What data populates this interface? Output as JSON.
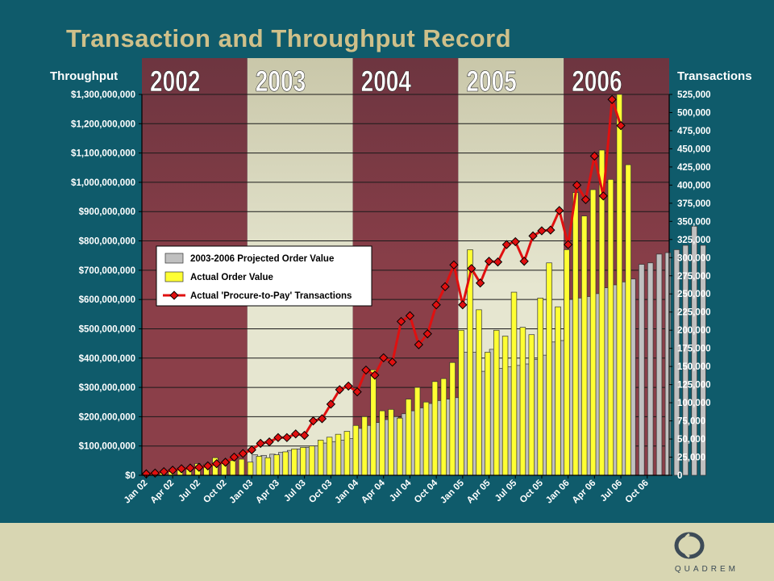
{
  "slide": {
    "title": "Transaction and Throughput Record",
    "left_axis_title": "Throughput",
    "right_axis_title": "Transactions"
  },
  "footer": {
    "brand_text": "QUADREM",
    "colors": {
      "background": "#d8d6b2",
      "logo": "#3d4b57"
    },
    "logo_icon": "quadrem-logo-icon"
  },
  "chart_data": {
    "type": "bar",
    "year_bands": [
      {
        "label": "2002",
        "start": 0,
        "end": 12,
        "color": "#8b3f49"
      },
      {
        "label": "2003",
        "start": 12,
        "end": 24,
        "color": "#e6e6d0"
      },
      {
        "label": "2004",
        "start": 24,
        "end": 36,
        "color": "#8b3f49"
      },
      {
        "label": "2005",
        "start": 36,
        "end": 48,
        "color": "#e6e6d0"
      },
      {
        "label": "2006",
        "start": 48,
        "end": 60,
        "color": "#8b3f49"
      }
    ],
    "x_tick_labels": [
      {
        "index": 0,
        "label": "Jan 02"
      },
      {
        "index": 3,
        "label": "Apr 02"
      },
      {
        "index": 6,
        "label": "Jul 02"
      },
      {
        "index": 9,
        "label": "Oct 02"
      },
      {
        "index": 12,
        "label": "Jan 03"
      },
      {
        "index": 15,
        "label": "Apr 03"
      },
      {
        "index": 18,
        "label": "Jul 03"
      },
      {
        "index": 21,
        "label": "Oct 03"
      },
      {
        "index": 24,
        "label": "Jan 04"
      },
      {
        "index": 27,
        "label": "Apr 04"
      },
      {
        "index": 30,
        "label": "Jul 04"
      },
      {
        "index": 33,
        "label": "Oct 04"
      },
      {
        "index": 36,
        "label": "Jan 05"
      },
      {
        "index": 39,
        "label": "Apr 05"
      },
      {
        "index": 42,
        "label": "Jul 05"
      },
      {
        "index": 45,
        "label": "Oct 05"
      },
      {
        "index": 48,
        "label": "Jan 06"
      },
      {
        "index": 51,
        "label": "Apr 06"
      },
      {
        "index": 54,
        "label": "Jul 06"
      },
      {
        "index": 57,
        "label": "Oct 06"
      }
    ],
    "y_left": {
      "min": 0,
      "max": 1300000000,
      "tick_values": [
        0,
        100000000,
        200000000,
        300000000,
        400000000,
        500000000,
        600000000,
        700000000,
        800000000,
        900000000,
        1000000000,
        1100000000,
        1200000000,
        1300000000
      ],
      "tick_labels": [
        "$0",
        "$100,000,000",
        "$200,000,000",
        "$300,000,000",
        "$400,000,000",
        "$500,000,000",
        "$600,000,000",
        "$700,000,000",
        "$800,000,000",
        "$900,000,000",
        "$1,000,000,000",
        "$1,100,000,000",
        "$1,200,000,000",
        "$1,300,000,000"
      ]
    },
    "y_right": {
      "min": 0,
      "max": 525000,
      "tick_values": [
        0,
        25000,
        50000,
        75000,
        100000,
        125000,
        150000,
        175000,
        200000,
        225000,
        250000,
        275000,
        300000,
        325000,
        350000,
        375000,
        400000,
        425000,
        450000,
        475000,
        500000,
        525000
      ],
      "tick_labels": [
        "0",
        "25,000",
        "50,000",
        "75,000",
        "100,000",
        "125,000",
        "150,000",
        "175,000",
        "200,000",
        "225,000",
        "250,000",
        "275,000",
        "300,000",
        "325,000",
        "350,000",
        "375,000",
        "400,000",
        "425,000",
        "450,000",
        "475,000",
        "500,000",
        "525,000"
      ]
    },
    "grid": true,
    "legend": {
      "placement": "upper-left",
      "entries": [
        {
          "label": "2003-2006 Projected Order Value",
          "color": "#c0c0c0",
          "kind": "bar"
        },
        {
          "label": "Actual Order Value",
          "color": "#ffff33",
          "kind": "bar"
        },
        {
          "label": "Actual 'Procure-to-Pay' Transactions",
          "color": "#e01010",
          "kind": "line"
        }
      ]
    },
    "series": [
      {
        "name": "2003-2006 Projected Order Value",
        "axis": "left",
        "start_index": 12,
        "values": [
          70000000,
          68000000,
          72000000,
          78000000,
          85000000,
          90000000,
          95000000,
          100000000,
          110000000,
          115000000,
          120000000,
          125000000,
          160000000,
          170000000,
          180000000,
          190000000,
          200000000,
          210000000,
          220000000,
          230000000,
          245000000,
          255000000,
          260000000,
          265000000,
          420000000,
          420000000,
          355000000,
          430000000,
          365000000,
          370000000,
          375000000,
          380000000,
          395000000,
          410000000,
          455000000,
          460000000,
          600000000,
          605000000,
          610000000,
          620000000,
          640000000,
          650000000,
          660000000,
          670000000,
          720000000,
          725000000,
          755000000,
          760000000,
          770000000,
          785000000,
          850000000,
          785000000
        ]
      },
      {
        "name": "Actual Order Value",
        "axis": "left",
        "start_index": 0,
        "values": [
          5000000,
          8000000,
          12000000,
          20000000,
          25000000,
          25000000,
          40000000,
          38000000,
          60000000,
          40000000,
          50000000,
          55000000,
          45000000,
          65000000,
          60000000,
          70000000,
          80000000,
          90000000,
          95000000,
          100000000,
          120000000,
          130000000,
          140000000,
          150000000,
          170000000,
          200000000,
          360000000,
          220000000,
          225000000,
          195000000,
          260000000,
          300000000,
          250000000,
          320000000,
          330000000,
          385000000,
          495000000,
          770000000,
          565000000,
          420000000,
          495000000,
          475000000,
          625000000,
          505000000,
          480000000,
          605000000,
          725000000,
          575000000,
          770000000,
          965000000,
          885000000,
          975000000,
          1110000000,
          1010000000,
          1300000000,
          1060000000
        ]
      },
      {
        "name": "Actual 'Procure-to-Pay' Transactions",
        "axis": "right",
        "start_index": 0,
        "values": [
          2000,
          3000,
          5000,
          7000,
          9000,
          10000,
          11000,
          13000,
          16000,
          18000,
          25000,
          30000,
          35000,
          44000,
          46000,
          52000,
          52000,
          57000,
          55000,
          75000,
          78000,
          98000,
          118000,
          123000,
          115000,
          145000,
          138000,
          162000,
          156000,
          212000,
          220000,
          180000,
          195000,
          235000,
          260000,
          290000,
          235000,
          285000,
          265000,
          295000,
          294000,
          318000,
          322000,
          295000,
          330000,
          337000,
          338000,
          365000,
          318000,
          400000,
          380000,
          440000,
          385000,
          518000,
          482000
        ]
      }
    ]
  }
}
